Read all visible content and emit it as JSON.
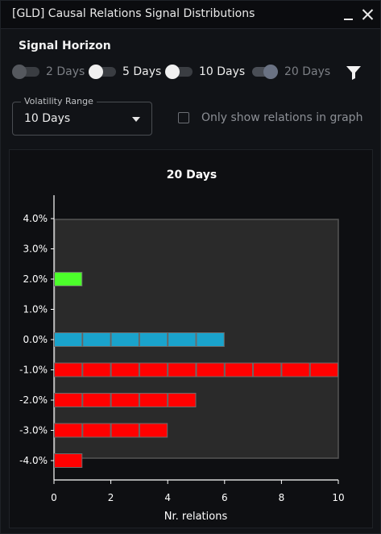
{
  "window": {
    "title": "[GLD] Causal Relations Signal Distributions",
    "minimize_icon": "minimize-icon",
    "close_icon": "close-icon"
  },
  "signal_horizon": {
    "title": "Signal Horizon",
    "options": [
      {
        "label": "2 Days",
        "state": "off"
      },
      {
        "label": "5 Days",
        "state": "on"
      },
      {
        "label": "10 Days",
        "state": "on"
      },
      {
        "label": "20 Days",
        "state": "selected"
      }
    ],
    "filter_icon": "filter-icon"
  },
  "volatility_range": {
    "label": "Volatility Range",
    "value": "10 Days"
  },
  "checkbox": {
    "label": "Only show relations in graph",
    "checked": false
  },
  "chart_data": {
    "type": "bar",
    "orientation": "horizontal",
    "title": "20 Days",
    "xlabel": "Nr. relations",
    "ylabel": "",
    "xlim": [
      0,
      10
    ],
    "x_ticks": [
      "0",
      "2",
      "4",
      "6",
      "8",
      "10"
    ],
    "categories": [
      "4.0%",
      "3.0%",
      "2.0%",
      "1.0%",
      "0.0%",
      "-1.0%",
      "-2.0%",
      "-3.0%",
      "-4.0%"
    ],
    "values": [
      0,
      0,
      1,
      0,
      6,
      10,
      5,
      4,
      1
    ],
    "bar_colors": [
      "#ff0000",
      "#ff0000",
      "#4cff2b",
      "#ff0000",
      "#1aa3cc",
      "#ff0000",
      "#ff0000",
      "#ff0000",
      "#ff0000"
    ],
    "plot_background": "#2a2a2a",
    "grid": false
  }
}
